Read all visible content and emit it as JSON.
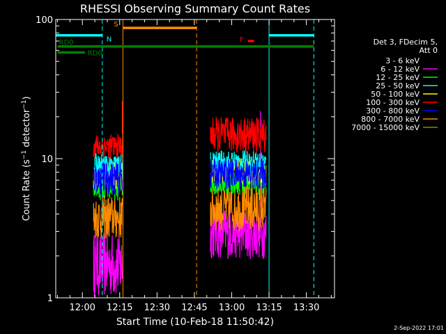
{
  "chart_data": {
    "type": "line",
    "title": "RHESSI Observing Summary Count Rates",
    "xlabel": "Start Time (10-Feb-18 11:50:42)",
    "ylabel": "Count Rate (s⁻¹ detector⁻¹)",
    "ylog": true,
    "ylim": [
      1,
      100
    ],
    "xlim_minutes": [
      -10.7,
      101.3
    ],
    "x_ticks": [
      {
        "label": "12:00",
        "min": 0
      },
      {
        "label": "12:15",
        "min": 15
      },
      {
        "label": "12:30",
        "min": 30
      },
      {
        "label": "12:45",
        "min": 45
      },
      {
        "label": "13:00",
        "min": 60
      },
      {
        "label": "13:15",
        "min": 75
      },
      {
        "label": "13:30",
        "min": 90
      }
    ],
    "y_ticks": [
      {
        "label": "1",
        "value": 1
      },
      {
        "label": "10",
        "value": 10
      },
      {
        "label": "100",
        "value": 100
      }
    ],
    "legend": {
      "position": "right",
      "header": [
        "Det 3, FDecim 5,",
        "Att 0"
      ],
      "entries": [
        {
          "label": "3 - 6 keV",
          "color": "#000000"
        },
        {
          "label": "6 - 12 keV",
          "color": "#ff00ff"
        },
        {
          "label": "12 - 25 keV",
          "color": "#00ff00"
        },
        {
          "label": "25 - 50 keV",
          "color": "#00ffff"
        },
        {
          "label": "50 - 100 keV",
          "color": "#ffff00"
        },
        {
          "label": "100 - 300 keV",
          "color": "#ff0000"
        },
        {
          "label": "300 - 800 keV",
          "color": "#0000ff"
        },
        {
          "label": "800 - 7000 keV",
          "color": "#ff8c00"
        },
        {
          "label": "7000 - 15000 keV",
          "color": "#8b8b00"
        }
      ]
    },
    "series": [
      {
        "name": "6 - 12 keV",
        "color": "#ff00ff",
        "segments": [
          {
            "start": 4.5,
            "end": 16.3,
            "lo": 1.0,
            "hi": 3.0
          },
          {
            "start": 51.5,
            "end": 73.8,
            "lo": 1.9,
            "hi": 4.5
          }
        ],
        "spikes": [
          {
            "min": 71.5,
            "value": 22
          }
        ]
      },
      {
        "name": "800 - 7000 keV",
        "color": "#ff8c00",
        "segments": [
          {
            "start": 4.5,
            "end": 16.3,
            "lo": 2.6,
            "hi": 5.5
          },
          {
            "start": 51.5,
            "end": 73.8,
            "lo": 3.0,
            "hi": 6.5
          }
        ],
        "spikes": []
      },
      {
        "name": "12 - 25 keV",
        "color": "#00ff00",
        "segments": [
          {
            "start": 4.5,
            "end": 16.3,
            "lo": 5.0,
            "hi": 8.0
          },
          {
            "start": 51.5,
            "end": 73.8,
            "lo": 5.5,
            "hi": 8.5
          }
        ],
        "spikes": []
      },
      {
        "name": "50 - 100 keV",
        "color": "#ffff00",
        "segments": [
          {
            "start": 4.5,
            "end": 16.3,
            "lo": 6.0,
            "hi": 9.5
          },
          {
            "start": 51.5,
            "end": 73.8,
            "lo": 6.5,
            "hi": 10.0
          }
        ],
        "spikes": []
      },
      {
        "name": "25 - 50 keV",
        "color": "#00ffff",
        "segments": [
          {
            "start": 4.5,
            "end": 16.3,
            "lo": 7.0,
            "hi": 11.0
          },
          {
            "start": 51.5,
            "end": 73.8,
            "lo": 7.5,
            "hi": 11.5
          }
        ],
        "spikes": []
      },
      {
        "name": "300 - 800 keV",
        "color": "#0000ff",
        "segments": [
          {
            "start": 4.5,
            "end": 16.3,
            "lo": 5.5,
            "hi": 9.5
          },
          {
            "start": 51.5,
            "end": 73.8,
            "lo": 6.0,
            "hi": 10.0
          }
        ],
        "spikes": []
      },
      {
        "name": "100 - 300 keV",
        "color": "#ff0000",
        "segments": [
          {
            "start": 4.5,
            "end": 16.3,
            "lo": 10.0,
            "hi": 15.0
          },
          {
            "start": 51.5,
            "end": 73.8,
            "lo": 11.0,
            "hi": 20.0
          }
        ],
        "spikes": [
          {
            "min": 16.0,
            "value": 26
          }
        ]
      }
    ],
    "flags": [
      {
        "name": "N",
        "color": "#00ffff",
        "start": -10.7,
        "end": 8.0,
        "value": 77
      },
      {
        "name": "S",
        "color": "#ff8c00",
        "start": 16.3,
        "end": 45.9,
        "value": 87
      },
      {
        "name": "F",
        "color": "#ff0000",
        "start": 66.5,
        "end": 69.0,
        "value": 70
      },
      {
        "name": "",
        "color": "#00ffff",
        "start": 75.0,
        "end": 93.0,
        "value": 77
      },
      {
        "name": "RD0",
        "color": "#008000",
        "start": -10.0,
        "end": 93.0,
        "value": 64
      },
      {
        "name": "RD6",
        "color": "#008000",
        "start": -10.0,
        "end": 1.0,
        "value": 58
      }
    ],
    "vlines": [
      {
        "min": -10.7,
        "color": "#00ffff",
        "style": "solid"
      },
      {
        "min": 8.0,
        "color": "#00ffff",
        "style": "dashed"
      },
      {
        "min": 16.3,
        "color": "#ff8c00",
        "style": "solid"
      },
      {
        "min": 45.9,
        "color": "#ff8c00",
        "style": "dashed"
      },
      {
        "min": 75.0,
        "color": "#00ffff",
        "style": "solid"
      },
      {
        "min": 93.0,
        "color": "#00ffff",
        "style": "dashed"
      }
    ]
  },
  "footer": {
    "date": "2-Sep-2022 17:01"
  }
}
